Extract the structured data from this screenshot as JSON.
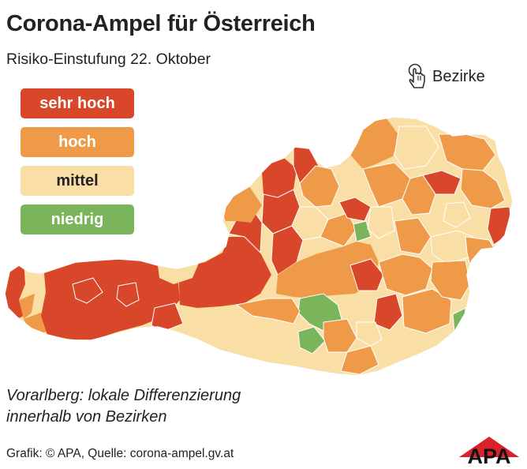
{
  "title": "Corona-Ampel für Österreich",
  "subtitle": "Risiko-Einstufung 22. Oktober",
  "bezirke_label": "Bezirke",
  "legend": [
    {
      "label": "sehr hoch",
      "color": "#d9472b",
      "text_color": "#ffffff"
    },
    {
      "label": "hoch",
      "color": "#ee9a49",
      "text_color": "#ffffff"
    },
    {
      "label": "mittel",
      "color": "#f9dfa6",
      "text_color": "#222222"
    },
    {
      "label": "niedrig",
      "color": "#7ab55c",
      "text_color": "#ffffff"
    }
  ],
  "note_line1": "Vorarlberg: lokale Differenzierung",
  "note_line2": "innerhalb von Bezirken",
  "credit": "Grafik: © APA, Quelle: corona-ampel.gv.at",
  "logo_text": "APA",
  "icons": {
    "hand": "pointer-hand-icon"
  }
}
